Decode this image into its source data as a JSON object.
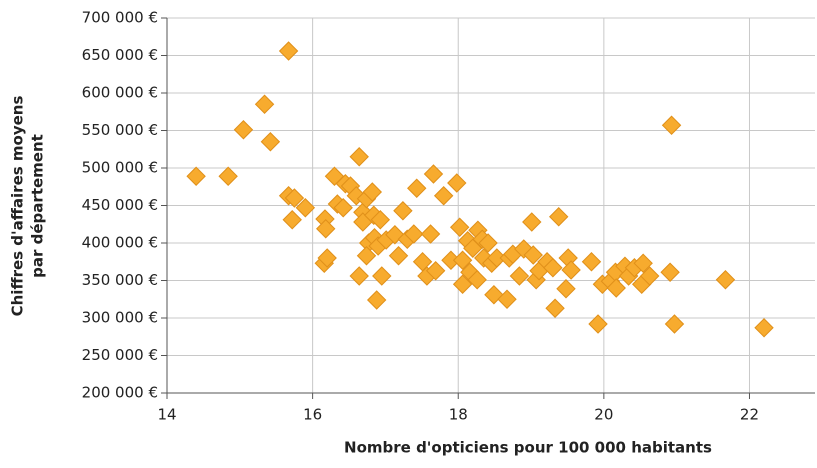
{
  "chart_data": {
    "type": "scatter",
    "xlabel": "Nombre d'opticiens pour 100 000 habitants",
    "ylabel": [
      "Chiffres d'affaires moyens",
      "par département"
    ],
    "color": "#f7ab2e",
    "xlim": [
      14,
      22.9
    ],
    "xticks": [
      14,
      16,
      18,
      20,
      22
    ],
    "ylim": [
      200000,
      700000
    ],
    "yticks": [
      {
        "value": 200000,
        "label": "200 000 €"
      },
      {
        "value": 250000,
        "label": "250 000 €"
      },
      {
        "value": 300000,
        "label": "300 000 €"
      },
      {
        "value": 350000,
        "label": "350 000 €"
      },
      {
        "value": 400000,
        "label": "400 000 €"
      },
      {
        "value": 450000,
        "label": "450 000 €"
      },
      {
        "value": 500000,
        "label": "500 000 €"
      },
      {
        "value": 550000,
        "label": "550 000 €"
      },
      {
        "value": 600000,
        "label": "600 000 €"
      },
      {
        "value": 650000,
        "label": "650 000 €"
      },
      {
        "value": 700000,
        "label": "700 000 €"
      }
    ],
    "grid": true,
    "x": [
      14.4,
      14.84,
      15.05,
      15.34,
      15.42,
      15.67,
      15.67,
      15.72,
      15.75,
      15.9,
      16.17,
      16.18,
      16.16,
      16.2,
      16.3,
      16.34,
      16.42,
      16.45,
      16.52,
      16.6,
      16.64,
      16.64,
      16.69,
      16.69,
      16.74,
      16.77,
      16.74,
      16.82,
      16.84,
      16.85,
      16.88,
      16.9,
      16.93,
      16.95,
      17.01,
      17.13,
      17.18,
      17.24,
      17.3,
      17.39,
      17.43,
      17.51,
      17.57,
      17.62,
      17.66,
      17.69,
      17.8,
      17.9,
      17.98,
      18.02,
      18.06,
      18.06,
      18.13,
      18.16,
      18.2,
      18.26,
      18.27,
      18.33,
      18.35,
      18.41,
      18.46,
      18.49,
      18.53,
      18.67,
      18.7,
      18.75,
      18.84,
      18.9,
      19.01,
      19.03,
      19.07,
      19.11,
      19.22,
      19.3,
      19.33,
      19.38,
      19.48,
      19.51,
      19.55,
      19.83,
      19.92,
      19.98,
      20.09,
      20.16,
      20.17,
      20.29,
      20.34,
      20.42,
      20.52,
      20.54,
      20.63,
      20.93,
      20.91,
      20.97,
      21.67,
      22.2
    ],
    "values": [
      489000,
      489000,
      551000,
      585000,
      535000,
      656000,
      463000,
      431000,
      460000,
      447000,
      432000,
      419000,
      373000,
      380000,
      489000,
      452000,
      447000,
      479000,
      476000,
      463000,
      515000,
      356000,
      441000,
      428000,
      459000,
      400000,
      383000,
      468000,
      437000,
      407000,
      324000,
      396000,
      431000,
      356000,
      404000,
      411000,
      383000,
      443000,
      405000,
      412000,
      473000,
      375000,
      356000,
      412000,
      492000,
      363000,
      463000,
      377000,
      480000,
      421000,
      377000,
      345000,
      403000,
      361000,
      393000,
      351000,
      417000,
      405000,
      380000,
      400000,
      373000,
      331000,
      380000,
      325000,
      380000,
      385000,
      356000,
      392000,
      428000,
      384000,
      351000,
      363000,
      375000,
      367000,
      313000,
      435000,
      339000,
      380000,
      364000,
      375000,
      292000,
      345000,
      349000,
      361000,
      340000,
      369000,
      356000,
      367000,
      345000,
      373000,
      356000,
      557000,
      361000,
      292000,
      351000,
      287000
    ]
  }
}
